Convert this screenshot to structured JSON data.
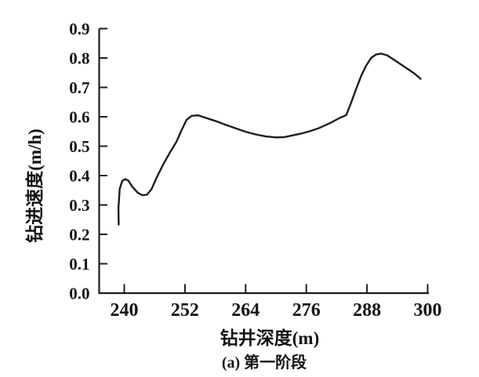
{
  "figure": {
    "background_color": "#ffffff",
    "line_color": "#1d1d1d",
    "axis_color": "#1d1d1d",
    "text_color": "#141414"
  },
  "chart_data": {
    "type": "line",
    "title": "",
    "xlabel": "钻井深度(m)",
    "ylabel": "钻进速度(m/h)",
    "caption": "(a) 第一阶段",
    "grid": false,
    "legend": false,
    "x_axis": {
      "min": 240,
      "max": 300,
      "ticks": [
        240,
        252,
        264,
        276,
        288,
        300
      ],
      "tick_labels": [
        "240",
        "252",
        "264",
        "276",
        "288",
        "300"
      ]
    },
    "y_axis": {
      "min": 0.0,
      "max": 0.9,
      "ticks": [
        0.0,
        0.1,
        0.2,
        0.3,
        0.4,
        0.5,
        0.6,
        0.7,
        0.8,
        0.9
      ],
      "tick_labels": [
        "0.0",
        "0.1",
        "0.2",
        "0.3",
        "0.4",
        "0.5",
        "0.6",
        "0.7",
        "0.8",
        "0.9"
      ]
    },
    "series": [
      {
        "points": [
          [
            238.9,
            0.233
          ],
          [
            238.85,
            0.29
          ],
          [
            239.1,
            0.355
          ],
          [
            239.6,
            0.382
          ],
          [
            240.2,
            0.388
          ],
          [
            240.8,
            0.383
          ],
          [
            241.6,
            0.362
          ],
          [
            242.7,
            0.341
          ],
          [
            243.6,
            0.333
          ],
          [
            244.5,
            0.335
          ],
          [
            245.4,
            0.354
          ],
          [
            246.4,
            0.393
          ],
          [
            247.7,
            0.438
          ],
          [
            249.0,
            0.478
          ],
          [
            250.3,
            0.514
          ],
          [
            251.3,
            0.553
          ],
          [
            252.3,
            0.589
          ],
          [
            253.3,
            0.603
          ],
          [
            254.6,
            0.605
          ],
          [
            256.0,
            0.597
          ],
          [
            258.0,
            0.586
          ],
          [
            260.0,
            0.573
          ],
          [
            262.0,
            0.561
          ],
          [
            264.0,
            0.549
          ],
          [
            266.0,
            0.54
          ],
          [
            268.0,
            0.533
          ],
          [
            270.0,
            0.53
          ],
          [
            271.7,
            0.531
          ],
          [
            273.4,
            0.537
          ],
          [
            275.0,
            0.543
          ],
          [
            276.7,
            0.551
          ],
          [
            278.6,
            0.562
          ],
          [
            280.6,
            0.578
          ],
          [
            282.6,
            0.596
          ],
          [
            283.9,
            0.606
          ],
          [
            284.8,
            0.645
          ],
          [
            285.8,
            0.692
          ],
          [
            286.8,
            0.737
          ],
          [
            287.8,
            0.773
          ],
          [
            288.8,
            0.8
          ],
          [
            289.8,
            0.812
          ],
          [
            290.8,
            0.815
          ],
          [
            292.0,
            0.809
          ],
          [
            293.6,
            0.791
          ],
          [
            295.6,
            0.768
          ],
          [
            297.4,
            0.747
          ],
          [
            298.6,
            0.729
          ]
        ]
      }
    ]
  }
}
